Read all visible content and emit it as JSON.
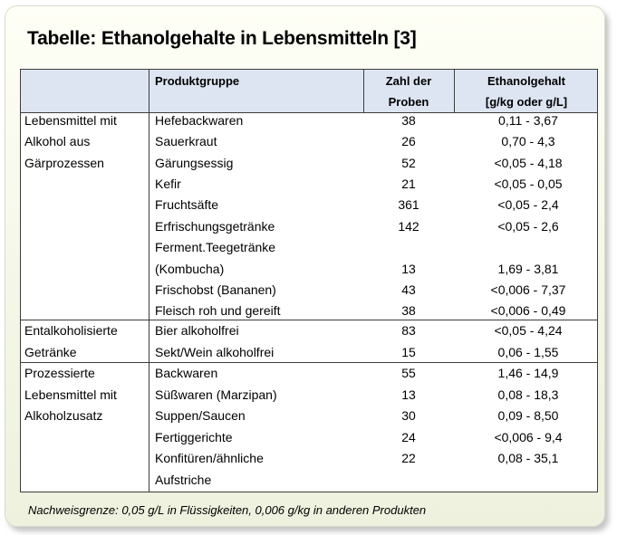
{
  "title": "Tabelle: Ethanolgehalte in Lebensmitteln [3]",
  "headers": {
    "product": "Produktgruppe",
    "count_1": "Zahl der",
    "count_2": "Proben",
    "ethanol_1": "Ethanolgehalt",
    "ethanol_2": "[g/kg oder g/L]"
  },
  "groups": [
    {
      "lines": [
        "Lebensmittel mit",
        "Alkohol aus",
        "Gärprozessen"
      ]
    },
    {
      "lines": [
        "Entalkoholisierte",
        "Getränke"
      ]
    },
    {
      "lines": [
        "Prozessierte",
        "Lebensmittel mit",
        "Alkoholzusatz"
      ]
    }
  ],
  "rows": [
    {
      "product": [
        "Hefebackwaren"
      ],
      "count": "38",
      "ethanol": "0,11 - 3,67"
    },
    {
      "product": [
        "Sauerkraut"
      ],
      "count": "26",
      "ethanol": "0,70 - 4,3"
    },
    {
      "product": [
        "Gärungsessig"
      ],
      "count": "52",
      "ethanol": "<0,05 - 4,18"
    },
    {
      "product": [
        "Kefir"
      ],
      "count": "21",
      "ethanol": "<0,05 - 0,05"
    },
    {
      "product": [
        "Fruchtsäfte"
      ],
      "count": "361",
      "ethanol": "<0,05 - 2,4"
    },
    {
      "product": [
        "Erfrischungsgetränke"
      ],
      "count": "142",
      "ethanol": "<0,05 - 2,6"
    },
    {
      "product": [
        "Ferment.Teegetränke",
        "(Kombucha)"
      ],
      "count": "13",
      "ethanol": "1,69 - 3,81"
    },
    {
      "product": [
        "Frischobst (Bananen)"
      ],
      "count": "43",
      "ethanol": "<0,006 - 7,37"
    },
    {
      "product": [
        "Fleisch roh und gereift"
      ],
      "count": "38",
      "ethanol": "<0,006 - 0,49"
    },
    {
      "product": [
        "Bier alkoholfrei"
      ],
      "count": "83",
      "ethanol": "<0,05 - 4,24"
    },
    {
      "product": [
        "Sekt/Wein alkoholfrei"
      ],
      "count": "15",
      "ethanol": "0,06 - 1,55"
    },
    {
      "product": [
        "Backwaren"
      ],
      "count": "55",
      "ethanol": "1,46 - 14,9"
    },
    {
      "product": [
        "Süßwaren (Marzipan)"
      ],
      "count": "13",
      "ethanol": "0,08 - 18,3"
    },
    {
      "product": [
        "Suppen/Saucen"
      ],
      "count": "30",
      "ethanol": "0,09 - 8,50"
    },
    {
      "product": [
        "Fertiggerichte"
      ],
      "count": "24",
      "ethanol": "<0,006 - 9,4"
    },
    {
      "product": [
        "Konfitüren/ähnliche",
        "Aufstriche"
      ],
      "count": "22",
      "ethanol": "0,08 - 35,1"
    }
  ],
  "footnote": "Nachweisgrenze: 0,05 g/L in Flüssigkeiten, 0,006 g/kg in anderen Produkten"
}
